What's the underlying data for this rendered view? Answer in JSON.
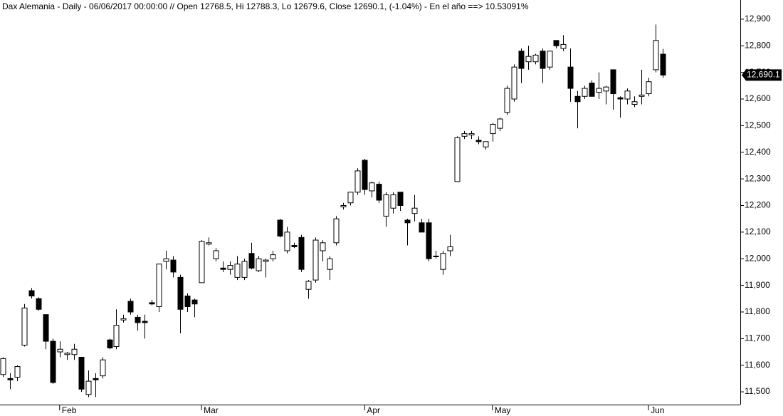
{
  "chart_data": {
    "type": "candlestick",
    "title": "Dax Alemania - Daily - 06/06/2017 00:00:00 // Open 12768.5, Hi 12788.3, Lo 12679.6, Close 12690.1, (-1.04%) - En el año ==> 10.53091%",
    "categories": [
      null,
      null,
      null,
      null,
      null,
      null,
      null,
      null,
      "Feb",
      null,
      null,
      null,
      null,
      null,
      null,
      null,
      null,
      null,
      null,
      null,
      null,
      null,
      null,
      null,
      null,
      null,
      null,
      null,
      "Mar",
      null,
      null,
      null,
      null,
      null,
      null,
      null,
      null,
      null,
      null,
      null,
      null,
      null,
      null,
      null,
      null,
      null,
      null,
      null,
      null,
      null,
      null,
      "Apr",
      null,
      null,
      null,
      null,
      null,
      null,
      null,
      null,
      null,
      null,
      null,
      null,
      null,
      null,
      null,
      null,
      null,
      "May",
      null,
      null,
      null,
      null,
      null,
      null,
      null,
      null,
      null,
      null,
      null,
      null,
      null,
      null,
      null,
      null,
      null,
      null,
      null,
      null,
      null,
      "Jun",
      null,
      null
    ],
    "open": [
      11565,
      11550,
      11555,
      11675,
      11880,
      11850,
      11790,
      11690,
      11650,
      11640,
      11640,
      11630,
      11490,
      11550,
      11560,
      11695,
      11670,
      11770,
      11840,
      11780,
      11765,
      11835,
      11820,
      11990,
      11995,
      11930,
      11860,
      11845,
      11910,
      12055,
      12000,
      11965,
      11960,
      11930,
      11930,
      12020,
      11955,
      11990,
      12000,
      12145,
      12030,
      12050,
      12080,
      11885,
      11920,
      12030,
      11960,
      12060,
      12195,
      12210,
      12250,
      12370,
      12255,
      12280,
      12160,
      12190,
      12250,
      12145,
      12170,
      12135,
      12135,
      12010,
      11960,
      12030,
      12290,
      12460,
      12465,
      12445,
      12420,
      12470,
      12490,
      12550,
      12600,
      12780,
      12740,
      12740,
      12780,
      12720,
      12820,
      12790,
      12720,
      12610,
      12610,
      12660,
      12625,
      12630,
      12710,
      12605,
      12600,
      12580,
      12610,
      12620,
      12710,
      12768.5
    ],
    "high": [
      11630,
      11570,
      11600,
      11830,
      11890,
      11855,
      11790,
      11700,
      11690,
      11650,
      11680,
      11630,
      11580,
      11570,
      11630,
      11700,
      11810,
      11790,
      11850,
      11790,
      11790,
      11845,
      11980,
      12030,
      12010,
      11940,
      11870,
      11850,
      12070,
      12080,
      12040,
      11990,
      11990,
      12010,
      12000,
      12060,
      12010,
      12000,
      12030,
      12150,
      12120,
      12060,
      12090,
      11920,
      12080,
      12070,
      12010,
      12160,
      12210,
      12250,
      12340,
      12375,
      12290,
      12290,
      12250,
      12250,
      12250,
      12150,
      12240,
      12150,
      12150,
      12030,
      12030,
      12090,
      12460,
      12480,
      12480,
      12460,
      12440,
      12510,
      12530,
      12650,
      12730,
      12790,
      12800,
      12770,
      12790,
      12780,
      12820,
      12840,
      12790,
      12630,
      12650,
      12670,
      12700,
      12650,
      12710,
      12610,
      12640,
      12610,
      12710,
      12680,
      12880,
      12788.3
    ],
    "low": [
      11555,
      11510,
      11540,
      11670,
      11850,
      11805,
      11660,
      11530,
      11630,
      11620,
      11620,
      11500,
      11480,
      11480,
      11550,
      11660,
      11660,
      11760,
      11790,
      11730,
      11700,
      11825,
      11800,
      11960,
      11930,
      11720,
      11800,
      11780,
      11910,
      12050,
      11990,
      11950,
      11940,
      11920,
      11920,
      11960,
      11950,
      11930,
      11990,
      12080,
      12020,
      12040,
      11950,
      11850,
      11910,
      11990,
      11920,
      12050,
      12185,
      12200,
      12240,
      12240,
      12230,
      12210,
      12120,
      12170,
      12180,
      12050,
      12140,
      12100,
      11990,
      12000,
      11940,
      12010,
      12290,
      12450,
      12450,
      12430,
      12410,
      12440,
      12480,
      12540,
      12590,
      12660,
      12710,
      12730,
      12660,
      12710,
      12790,
      12780,
      12590,
      12490,
      12600,
      12610,
      12600,
      12580,
      12560,
      12530,
      12580,
      12570,
      12580,
      12610,
      12700,
      12679.6
    ],
    "close": [
      11625,
      11545,
      11595,
      11815,
      11860,
      11810,
      11690,
      11535,
      11660,
      11645,
      11660,
      11510,
      11540,
      11545,
      11620,
      11665,
      11750,
      11775,
      11800,
      11760,
      11760,
      11830,
      11980,
      12000,
      11950,
      11810,
      11820,
      11830,
      12065,
      12060,
      12030,
      11960,
      11975,
      11980,
      11990,
      11965,
      12000,
      11995,
      12015,
      12085,
      12100,
      12045,
      11960,
      11915,
      12070,
      12060,
      12000,
      12150,
      12200,
      12250,
      12330,
      12260,
      12285,
      12220,
      12240,
      12240,
      12200,
      12135,
      12190,
      12100,
      12000,
      12010,
      12020,
      12045,
      12455,
      12470,
      12470,
      12440,
      12440,
      12505,
      12525,
      12640,
      12720,
      12715,
      12760,
      12765,
      12715,
      12780,
      12800,
      12805,
      12640,
      12590,
      12640,
      12610,
      12640,
      12645,
      12620,
      12600,
      12630,
      12590,
      12615,
      12665,
      12820,
      12690.1
    ],
    "up_color": "#ffffff",
    "down_color": "#000000",
    "ylim": [
      11452,
      12972
    ],
    "yticks": [
      {
        "value": 11500,
        "label": "11,500"
      },
      {
        "value": 11600,
        "label": "11,600"
      },
      {
        "value": 11700,
        "label": "11,700"
      },
      {
        "value": 11800,
        "label": "11,800"
      },
      {
        "value": 11900,
        "label": "11,900"
      },
      {
        "value": 12000,
        "label": "12,000"
      },
      {
        "value": 12100,
        "label": "12,100"
      },
      {
        "value": 12200,
        "label": "12,200"
      },
      {
        "value": 12300,
        "label": "12,300"
      },
      {
        "value": 12400,
        "label": "12,400"
      },
      {
        "value": 12500,
        "label": "12,500"
      },
      {
        "value": 12600,
        "label": "12,600"
      },
      {
        "value": 12700,
        "label": "12,700"
      },
      {
        "value": 12800,
        "label": "12,800"
      },
      {
        "value": 12900,
        "label": "12,900"
      }
    ],
    "last_price": {
      "value": 12690.1,
      "label": "12,690.1"
    },
    "grid": false
  }
}
